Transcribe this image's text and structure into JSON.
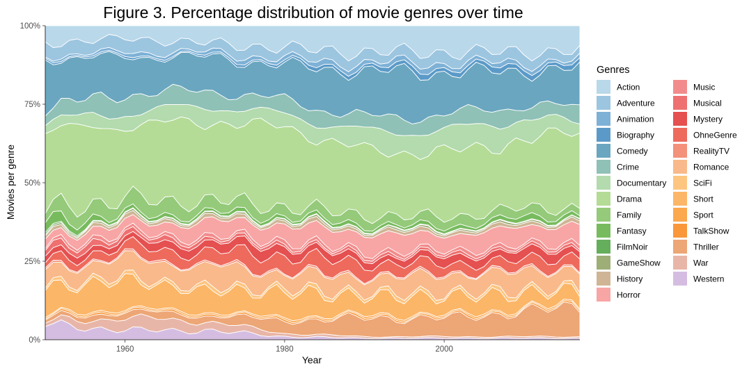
{
  "chart_data": {
    "type": "area",
    "stacking": "percent",
    "title": "Figure 3. Percentage distribution of movie genres over time",
    "xlabel": "Year",
    "ylabel": "Movies per genre",
    "xlim": [
      1950,
      2017
    ],
    "ylim": [
      0,
      1
    ],
    "x_ticks": [
      1960,
      1980,
      2000
    ],
    "x_tick_labels": [
      "1960",
      "1980",
      "2000"
    ],
    "y_ticks": [
      0,
      0.25,
      0.5,
      0.75,
      1
    ],
    "y_tick_labels": [
      "0%",
      "25%",
      "50%",
      "75%",
      "100%"
    ],
    "grid": false,
    "legend": {
      "title": "Genres",
      "placement": "right",
      "columns": 2
    },
    "x": [
      1950,
      1960,
      1970,
      1980,
      1990,
      2000,
      2010,
      2017
    ],
    "series": [
      {
        "name": "Action",
        "color": "#b9d8ea",
        "values": [
          0.055,
          0.04,
          0.055,
          0.07,
          0.085,
          0.085,
          0.085,
          0.08
        ]
      },
      {
        "name": "Adventure",
        "color": "#9cc5e0",
        "values": [
          0.04,
          0.045,
          0.03,
          0.035,
          0.035,
          0.035,
          0.035,
          0.03
        ]
      },
      {
        "name": "Animation",
        "color": "#7eb1d6",
        "values": [
          0.005,
          0.01,
          0.01,
          0.012,
          0.015,
          0.015,
          0.012,
          0.012
        ]
      },
      {
        "name": "Biography",
        "color": "#5b9ac8",
        "values": [
          0.005,
          0.005,
          0.005,
          0.008,
          0.012,
          0.015,
          0.015,
          0.015
        ]
      },
      {
        "name": "Comedy",
        "color": "#6aa6c0",
        "values": [
          0.16,
          0.12,
          0.11,
          0.11,
          0.15,
          0.14,
          0.11,
          0.13
        ]
      },
      {
        "name": "Crime",
        "color": "#8fc1b6",
        "values": [
          0.045,
          0.06,
          0.05,
          0.045,
          0.045,
          0.05,
          0.045,
          0.045
        ]
      },
      {
        "name": "Documentary",
        "color": "#b3dbad",
        "values": [
          0.03,
          0.04,
          0.05,
          0.04,
          0.06,
          0.07,
          0.07,
          0.03
        ]
      },
      {
        "name": "Drama",
        "color": "#b4dc96",
        "values": [
          0.25,
          0.24,
          0.26,
          0.25,
          0.21,
          0.21,
          0.22,
          0.25
        ]
      },
      {
        "name": "Family",
        "color": "#94ca7a",
        "values": [
          0.04,
          0.05,
          0.04,
          0.03,
          0.03,
          0.03,
          0.03,
          0.02
        ]
      },
      {
        "name": "Fantasy",
        "color": "#77bb5e",
        "values": [
          0.03,
          0.01,
          0.01,
          0.01,
          0.01,
          0.01,
          0.015,
          0.012
        ]
      },
      {
        "name": "FilmNoir",
        "color": "#65ae5c",
        "values": [
          0.005,
          0.002,
          0.002,
          0.002,
          0.002,
          0.002,
          0.002,
          0.002
        ]
      },
      {
        "name": "GameShow",
        "color": "#9eae77",
        "values": [
          0.005,
          0.005,
          0.005,
          0.005,
          0.005,
          0.005,
          0.005,
          0.005
        ]
      },
      {
        "name": "History",
        "color": "#cfb595",
        "values": [
          0.01,
          0.01,
          0.01,
          0.01,
          0.01,
          0.01,
          0.01,
          0.012
        ]
      },
      {
        "name": "Horror",
        "color": "#f8a5a5",
        "values": [
          0.03,
          0.03,
          0.05,
          0.05,
          0.06,
          0.05,
          0.06,
          0.06
        ]
      },
      {
        "name": "Music",
        "color": "#f28c8c",
        "values": [
          0.01,
          0.01,
          0.01,
          0.01,
          0.01,
          0.01,
          0.01,
          0.01
        ]
      },
      {
        "name": "Musical",
        "color": "#ee7070",
        "values": [
          0.02,
          0.015,
          0.01,
          0.008,
          0.008,
          0.008,
          0.008,
          0.008
        ]
      },
      {
        "name": "Mystery",
        "color": "#e55050",
        "values": [
          0.02,
          0.02,
          0.03,
          0.03,
          0.02,
          0.025,
          0.03,
          0.025
        ]
      },
      {
        "name": "OhneGenre",
        "color": "#ee6a5c",
        "values": [
          0.02,
          0.03,
          0.04,
          0.05,
          0.04,
          0.03,
          0.03,
          0.04
        ]
      },
      {
        "name": "RealityTV",
        "color": "#f4917a",
        "values": [
          0.005,
          0.005,
          0.005,
          0.005,
          0.005,
          0.005,
          0.005,
          0.005
        ]
      },
      {
        "name": "Romance",
        "color": "#f9b98a",
        "values": [
          0.05,
          0.06,
          0.07,
          0.05,
          0.05,
          0.06,
          0.06,
          0.06
        ]
      },
      {
        "name": "SciFi",
        "color": "#fdc580",
        "values": [
          0.01,
          0.01,
          0.01,
          0.01,
          0.01,
          0.01,
          0.01,
          0.01
        ]
      },
      {
        "name": "Short",
        "color": "#fcb668",
        "values": [
          0.09,
          0.09,
          0.07,
          0.08,
          0.06,
          0.06,
          0.05,
          0.04
        ]
      },
      {
        "name": "Sport",
        "color": "#fba84e",
        "values": [
          0.005,
          0.005,
          0.005,
          0.005,
          0.005,
          0.005,
          0.005,
          0.005
        ]
      },
      {
        "name": "TalkShow",
        "color": "#f9973a",
        "values": [
          0.005,
          0.005,
          0.005,
          0.005,
          0.005,
          0.005,
          0.005,
          0.005
        ]
      },
      {
        "name": "Thriller",
        "color": "#eda676",
        "values": [
          0.01,
          0.02,
          0.02,
          0.04,
          0.06,
          0.06,
          0.08,
          0.1
        ]
      },
      {
        "name": "War",
        "color": "#e8b6a8",
        "values": [
          0.01,
          0.04,
          0.03,
          0.01,
          0.005,
          0.005,
          0.005,
          0.005
        ]
      },
      {
        "name": "Western",
        "color": "#d5bde2",
        "values": [
          0.05,
          0.03,
          0.03,
          0.01,
          0.005,
          0.005,
          0.005,
          0.005
        ]
      }
    ]
  }
}
